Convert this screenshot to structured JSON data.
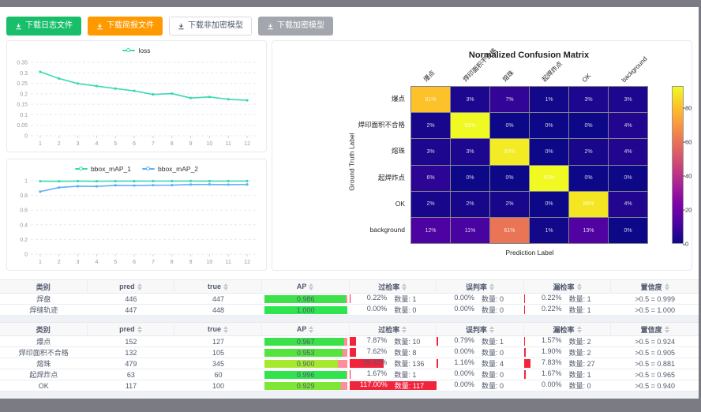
{
  "toolbar": {
    "buttons": [
      {
        "label": "下载日志文件",
        "variant": "success"
      },
      {
        "label": "下载简报文件",
        "variant": "warning"
      },
      {
        "label": "下载非加密模型",
        "variant": "default"
      },
      {
        "label": "下载加密模型",
        "variant": "disabled"
      }
    ]
  },
  "chart_data": [
    {
      "type": "line",
      "name": "loss-chart",
      "x": [
        1,
        2,
        3,
        4,
        5,
        6,
        7,
        8,
        9,
        10,
        11,
        12
      ],
      "ylim": [
        0,
        0.35
      ],
      "yticks": [
        0,
        0.05,
        0.1,
        0.15,
        0.2,
        0.25,
        0.3,
        0.35
      ],
      "ytick_labels": [
        "0",
        "0.05",
        "0.1",
        "0.15",
        "0.2",
        "0.25",
        "0.3",
        "0.35"
      ],
      "grid": true,
      "legend_position": "top",
      "series": [
        {
          "name": "loss",
          "color": "#3bd9b2",
          "values": [
            0.305,
            0.273,
            0.249,
            0.237,
            0.225,
            0.214,
            0.197,
            0.201,
            0.18,
            0.185,
            0.174,
            0.169
          ]
        }
      ]
    },
    {
      "type": "line",
      "name": "map-chart",
      "x": [
        1,
        2,
        3,
        4,
        5,
        6,
        7,
        8,
        9,
        10,
        11,
        12
      ],
      "ylim": [
        0,
        1
      ],
      "yticks": [
        0,
        0.2,
        0.4,
        0.6,
        0.8,
        1
      ],
      "ytick_labels": [
        "0",
        "0.2",
        "0.4",
        "0.6",
        "0.8",
        "1"
      ],
      "grid": true,
      "legend_position": "top",
      "series": [
        {
          "name": "bbox_mAP_1",
          "color": "#3bd9b2",
          "values": [
            0.994,
            0.993,
            0.995,
            0.993,
            0.995,
            0.995,
            0.996,
            0.996,
            0.996,
            0.995,
            0.996,
            0.996
          ]
        },
        {
          "name": "bbox_mAP_2",
          "color": "#5fb0f5",
          "values": [
            0.852,
            0.908,
            0.925,
            0.923,
            0.938,
            0.935,
            0.939,
            0.94,
            0.948,
            0.95,
            0.947,
            0.949
          ]
        }
      ]
    },
    {
      "type": "heatmap",
      "name": "confusion-matrix",
      "title": "Normalized Confusion Matrix",
      "xlabel": "Prediction Label",
      "ylabel": "Ground Truth Label",
      "labels": [
        "爆点",
        "焊印面积不合格",
        "熔珠",
        "起焊炸点",
        "OK",
        "background"
      ],
      "values_percent": [
        [
          81,
          3,
          7,
          1,
          3,
          3
        ],
        [
          2,
          93,
          0,
          0,
          0,
          4
        ],
        [
          3,
          3,
          90,
          0,
          2,
          4
        ],
        [
          6,
          0,
          0,
          93,
          0,
          0
        ],
        [
          2,
          2,
          2,
          0,
          89,
          4
        ],
        [
          12,
          11,
          61,
          1,
          13,
          0
        ]
      ],
      "vmax": 93,
      "colorbar_ticks": [
        80,
        60,
        40,
        20,
        0
      ],
      "colormap": "plasma"
    }
  ],
  "table_headers": [
    "类别",
    "pred",
    "true",
    "AP",
    "过检率",
    "误判率",
    "漏检率",
    "置信度"
  ],
  "tables": [
    {
      "rows": [
        {
          "name": "焊盘",
          "pred": "446",
          "true": "447",
          "ap": 0.986,
          "ap_label": "0.986",
          "ap_color": "#3de24b",
          "rates": [
            {
              "pct": 0.22,
              "pct_label": "0.22%",
              "count_label": "数量: 1"
            },
            {
              "pct": 0.0,
              "pct_label": "0.00%",
              "count_label": "数量: 0"
            },
            {
              "pct": 0.22,
              "pct_label": "0.22%",
              "count_label": "数量: 1"
            }
          ],
          "conf": ">0.5 = 0.999"
        },
        {
          "name": "焊缝轨迹",
          "pred": "447",
          "true": "448",
          "ap": 1.0,
          "ap_label": "1.000",
          "ap_color": "#2ee44f",
          "rates": [
            {
              "pct": 0.0,
              "pct_label": "0.00%",
              "count_label": "数量: 0"
            },
            {
              "pct": 0.0,
              "pct_label": "0.00%",
              "count_label": "数量: 0"
            },
            {
              "pct": 0.22,
              "pct_label": "0.22%",
              "count_label": "数量: 1"
            }
          ],
          "conf": ">0.5 = 1.000"
        }
      ]
    },
    {
      "rows": [
        {
          "name": "爆点",
          "pred": "152",
          "true": "127",
          "ap": 0.967,
          "ap_label": "0.967",
          "ap_color": "#3ce04a",
          "rates": [
            {
              "pct": 7.87,
              "pct_label": "7.87%",
              "count_label": "数量: 10"
            },
            {
              "pct": 0.79,
              "pct_label": "0.79%",
              "count_label": "数量: 1"
            },
            {
              "pct": 1.57,
              "pct_label": "1.57%",
              "count_label": "数量: 2"
            }
          ],
          "conf": ">0.5 = 0.924"
        },
        {
          "name": "焊印面积不合格",
          "pred": "132",
          "true": "105",
          "ap": 0.953,
          "ap_label": "0.953",
          "ap_color": "#55e43c",
          "rates": [
            {
              "pct": 7.62,
              "pct_label": "7.62%",
              "count_label": "数量: 8"
            },
            {
              "pct": 0.0,
              "pct_label": "0.00%",
              "count_label": "数量: 0"
            },
            {
              "pct": 1.9,
              "pct_label": "1.90%",
              "count_label": "数量: 2"
            }
          ],
          "conf": ">0.5 = 0.905"
        },
        {
          "name": "熔珠",
          "pred": "479",
          "true": "345",
          "ap": 0.9,
          "ap_label": "0.900",
          "ap_color": "#a6e92f",
          "rates": [
            {
              "pct": 39.42,
              "pct_label": "39.42%",
              "count_label": "数量: 136"
            },
            {
              "pct": 1.16,
              "pct_label": "1.16%",
              "count_label": "数量: 4"
            },
            {
              "pct": 7.83,
              "pct_label": "7.83%",
              "count_label": "数量: 27"
            }
          ],
          "conf": ">0.5 = 0.881"
        },
        {
          "name": "起焊炸点",
          "pred": "63",
          "true": "60",
          "ap": 0.996,
          "ap_label": "0.996",
          "ap_color": "#31e44e",
          "rates": [
            {
              "pct": 1.67,
              "pct_label": "1.67%",
              "count_label": "数量: 1"
            },
            {
              "pct": 0.0,
              "pct_label": "0.00%",
              "count_label": "数量: 0"
            },
            {
              "pct": 1.67,
              "pct_label": "1.67%",
              "count_label": "数量: 1"
            }
          ],
          "conf": ">0.5 = 0.965"
        },
        {
          "name": "OK",
          "pred": "117",
          "true": "100",
          "ap": 0.929,
          "ap_label": "0.929",
          "ap_color": "#7fe636",
          "rates": [
            {
              "pct": 117.0,
              "pct_label": "117.00%",
              "count_label": "数量: 117",
              "full": true
            },
            {
              "pct": 0.0,
              "pct_label": "0.00%",
              "count_label": "数量: 0"
            },
            {
              "pct": 0.0,
              "pct_label": "0.00%",
              "count_label": "数量: 0"
            }
          ],
          "conf": ">0.5 = 0.940"
        }
      ]
    }
  ]
}
